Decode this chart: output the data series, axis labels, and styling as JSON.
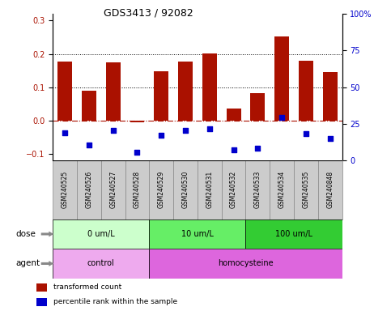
{
  "title": "GDS3413 / 92082",
  "samples": [
    "GSM240525",
    "GSM240526",
    "GSM240527",
    "GSM240528",
    "GSM240529",
    "GSM240530",
    "GSM240531",
    "GSM240532",
    "GSM240533",
    "GSM240534",
    "GSM240535",
    "GSM240848"
  ],
  "transformed_count": [
    0.178,
    0.09,
    0.175,
    -0.005,
    0.148,
    0.178,
    0.202,
    0.035,
    0.082,
    0.253,
    0.18,
    0.145
  ],
  "percentile_rank": [
    -0.038,
    -0.075,
    -0.03,
    -0.095,
    -0.045,
    -0.03,
    -0.025,
    -0.09,
    -0.085,
    0.008,
    -0.04,
    -0.055
  ],
  "bar_color": "#AA1100",
  "dot_color": "#0000CC",
  "ylim_left": [
    -0.12,
    0.32
  ],
  "ylim_right": [
    0,
    100
  ],
  "yticks_left": [
    -0.1,
    0.0,
    0.1,
    0.2,
    0.3
  ],
  "yticks_right": [
    0,
    25,
    50,
    75,
    100
  ],
  "ytick_labels_right": [
    "0",
    "25",
    "50",
    "75",
    "100%"
  ],
  "hline_y": [
    0.1,
    0.2
  ],
  "dose_groups": [
    {
      "label": "0 um/L",
      "start": 0,
      "end": 4,
      "color": "#CCFFCC"
    },
    {
      "label": "10 um/L",
      "start": 4,
      "end": 8,
      "color": "#66EE66"
    },
    {
      "label": "100 um/L",
      "start": 8,
      "end": 12,
      "color": "#33CC33"
    }
  ],
  "agent_groups": [
    {
      "label": "control",
      "start": 0,
      "end": 4,
      "color": "#EEAAEE"
    },
    {
      "label": "homocysteine",
      "start": 4,
      "end": 12,
      "color": "#DD66DD"
    }
  ],
  "dose_label": "dose",
  "agent_label": "agent",
  "legend_items": [
    {
      "label": "transformed count",
      "color": "#AA1100",
      "marker": "s"
    },
    {
      "label": "percentile rank within the sample",
      "color": "#0000CC",
      "marker": "s"
    }
  ],
  "sample_box_color": "#CCCCCC",
  "sample_box_edge": "#888888"
}
